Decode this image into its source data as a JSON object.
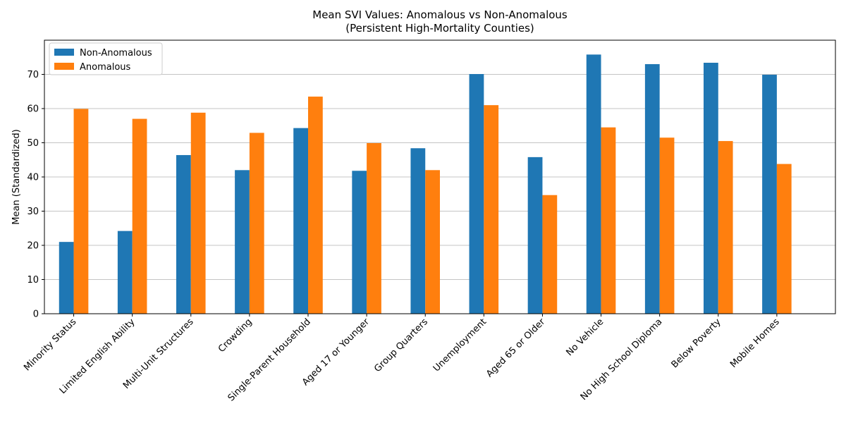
{
  "chart_data": {
    "type": "bar",
    "title": "Mean SVI Values: Anomalous vs Non-Anomalous",
    "subtitle": "(Persistent High-Mortality Counties)",
    "xlabel": "",
    "ylabel": "Mean (Standardized)",
    "ylim": [
      0,
      80
    ],
    "yticks": [
      0,
      10,
      20,
      30,
      40,
      50,
      60,
      70
    ],
    "grid": "horizontal",
    "legend_position": "top-left",
    "categories": [
      "Minority Status",
      "Limited English Ability",
      "Multi-Unit Structures",
      "Crowding",
      "Single-Parent Household",
      "Aged 17 or Younger",
      "Group Quarters",
      "Unemployment",
      "Aged 65 or Older",
      "No Vehicle",
      "No High School Diploma",
      "Below Poverty",
      "Mobile Homes"
    ],
    "series": [
      {
        "name": "Non-Anomalous",
        "color": "#1f77b4",
        "values": [
          21.0,
          24.2,
          46.4,
          42.0,
          54.3,
          41.8,
          48.4,
          70.1,
          45.8,
          75.8,
          73.0,
          73.4,
          69.9
        ]
      },
      {
        "name": "Anomalous",
        "color": "#ff7f0e",
        "values": [
          59.9,
          57.0,
          58.8,
          52.9,
          63.5,
          49.9,
          42.0,
          61.0,
          34.7,
          54.5,
          51.5,
          50.5,
          43.8
        ]
      }
    ]
  }
}
